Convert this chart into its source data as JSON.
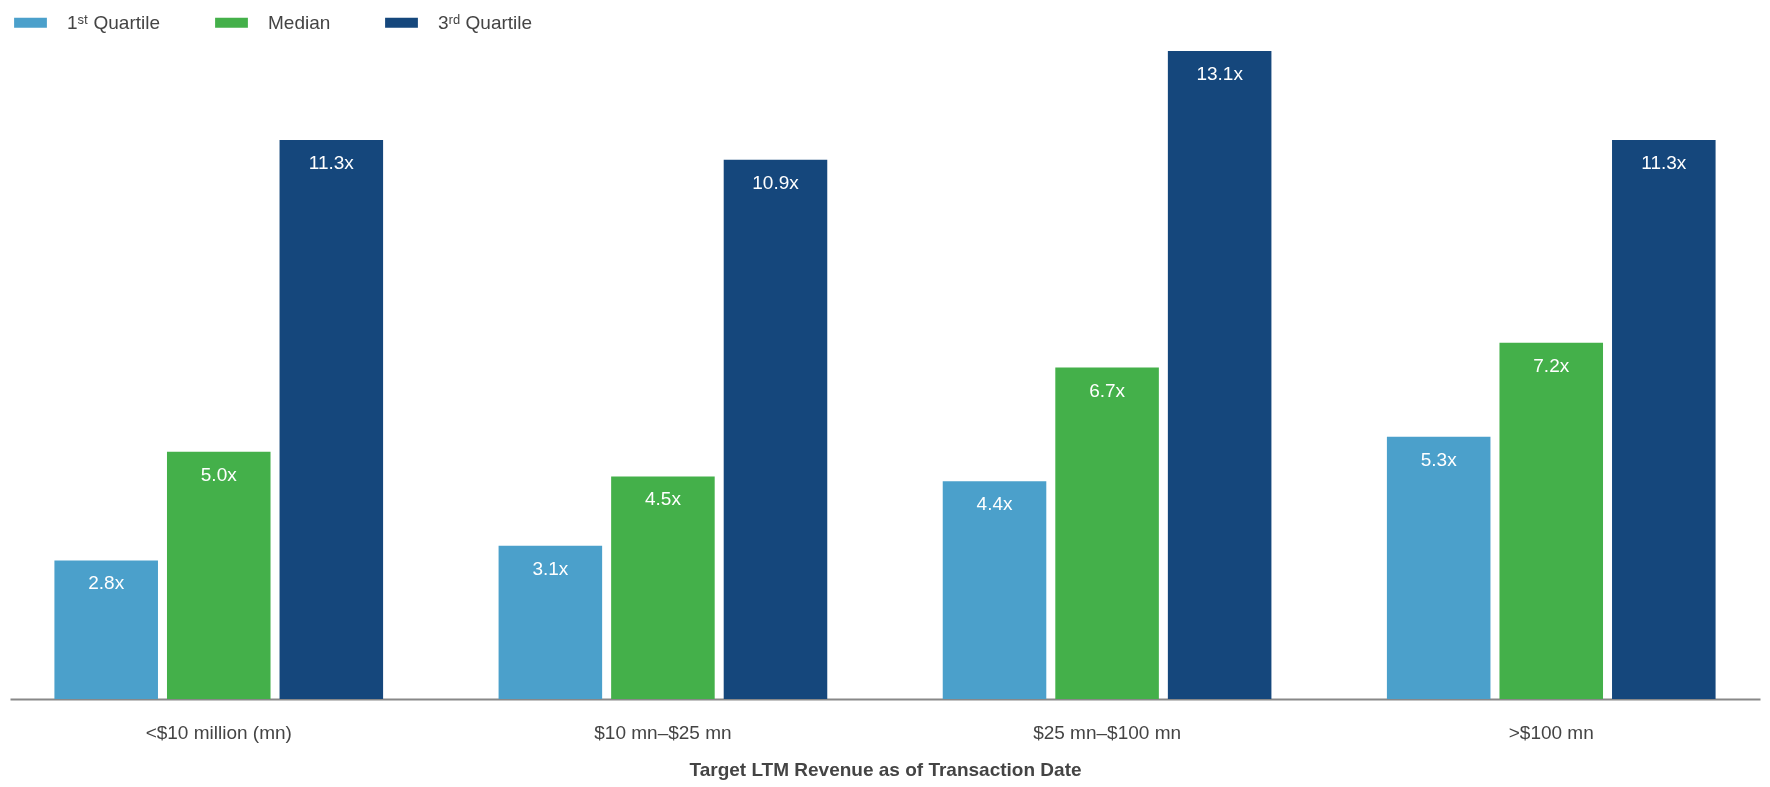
{
  "chart_data": {
    "type": "bar",
    "xlabel": "Target LTM Revenue as of Transaction Date",
    "categories": [
      "<$10 million (mn)",
      "$10 mn–$25 mn",
      "$25 mn–$100 mn",
      ">$100 mn"
    ],
    "series": [
      {
        "name": "1ˢᵗ Quartile",
        "color": "#4ba0cb",
        "values": [
          2.8,
          3.1,
          4.4,
          5.3
        ],
        "value_labels": [
          "2.8x",
          "3.1x",
          "4.4x",
          "5.3x"
        ]
      },
      {
        "name": "Median",
        "color": "#44b04a",
        "values": [
          5.0,
          4.5,
          6.7,
          7.2
        ],
        "value_labels": [
          "5.0x",
          "4.5x",
          "6.7x",
          "7.2x"
        ]
      },
      {
        "name": "3ʳᵈ Quartile",
        "color": "#15477c",
        "values": [
          11.3,
          10.9,
          13.1,
          11.3
        ],
        "value_labels": [
          "11.3x",
          "10.9x",
          "13.1x",
          "11.3x"
        ]
      }
    ],
    "legend": "top",
    "tick_labels": "x"
  }
}
